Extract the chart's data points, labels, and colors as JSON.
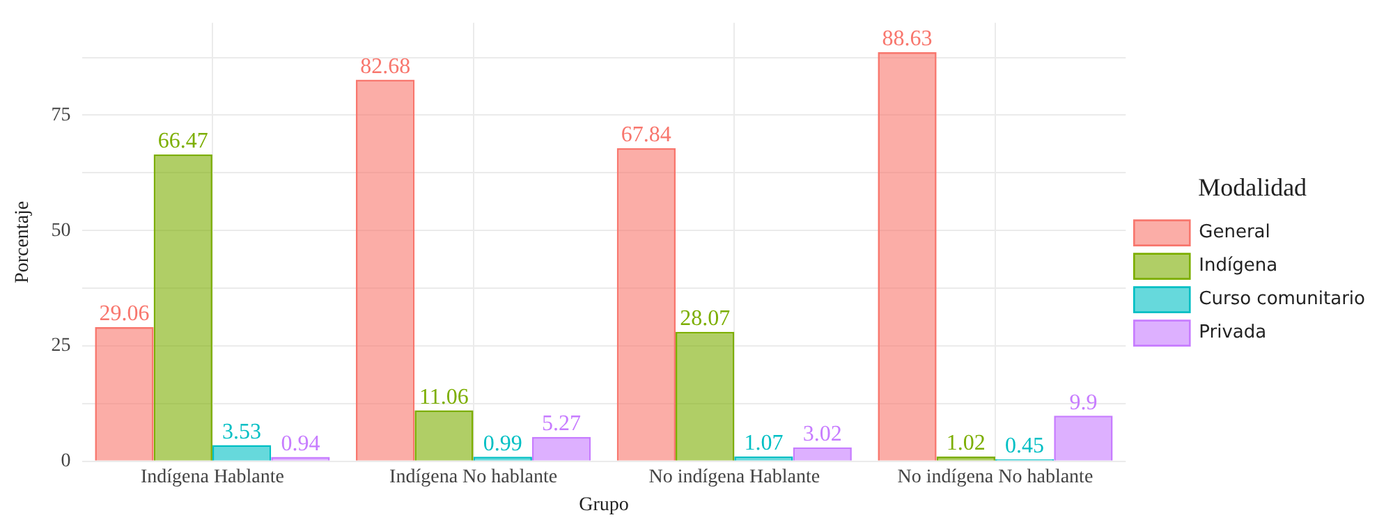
{
  "chart_data": {
    "type": "bar",
    "xlabel": "Grupo",
    "ylabel": "Porcentaje",
    "legend_title": "Modalidad",
    "legend": "right",
    "grid": true,
    "data_labels": true,
    "categories": [
      "Indígena Hablante",
      "Indígena No hablante",
      "No indígena Hablante",
      "No indígena No hablante"
    ],
    "ylim": [
      0,
      95
    ],
    "yticks": [
      0,
      {
        "value": 12.5,
        "label": null
      },
      25,
      {
        "value": 37.5,
        "label": null
      },
      50,
      {
        "value": 62.5,
        "label": null
      },
      75,
      {
        "value": 87.5,
        "label": null
      }
    ],
    "series": [
      {
        "name": "General",
        "color": "#f8766d",
        "values": [
          29.06,
          82.68,
          67.84,
          88.63
        ]
      },
      {
        "name": "Indígena",
        "color": "#7cae00",
        "values": [
          66.47,
          11.06,
          28.07,
          1.02
        ]
      },
      {
        "name": "Curso comunitario",
        "color": "#00bfc4",
        "values": [
          3.53,
          0.99,
          1.07,
          0.45
        ]
      },
      {
        "name": "Privada",
        "color": "#c77cff",
        "values": [
          0.94,
          5.27,
          3.02,
          9.9
        ]
      }
    ]
  }
}
